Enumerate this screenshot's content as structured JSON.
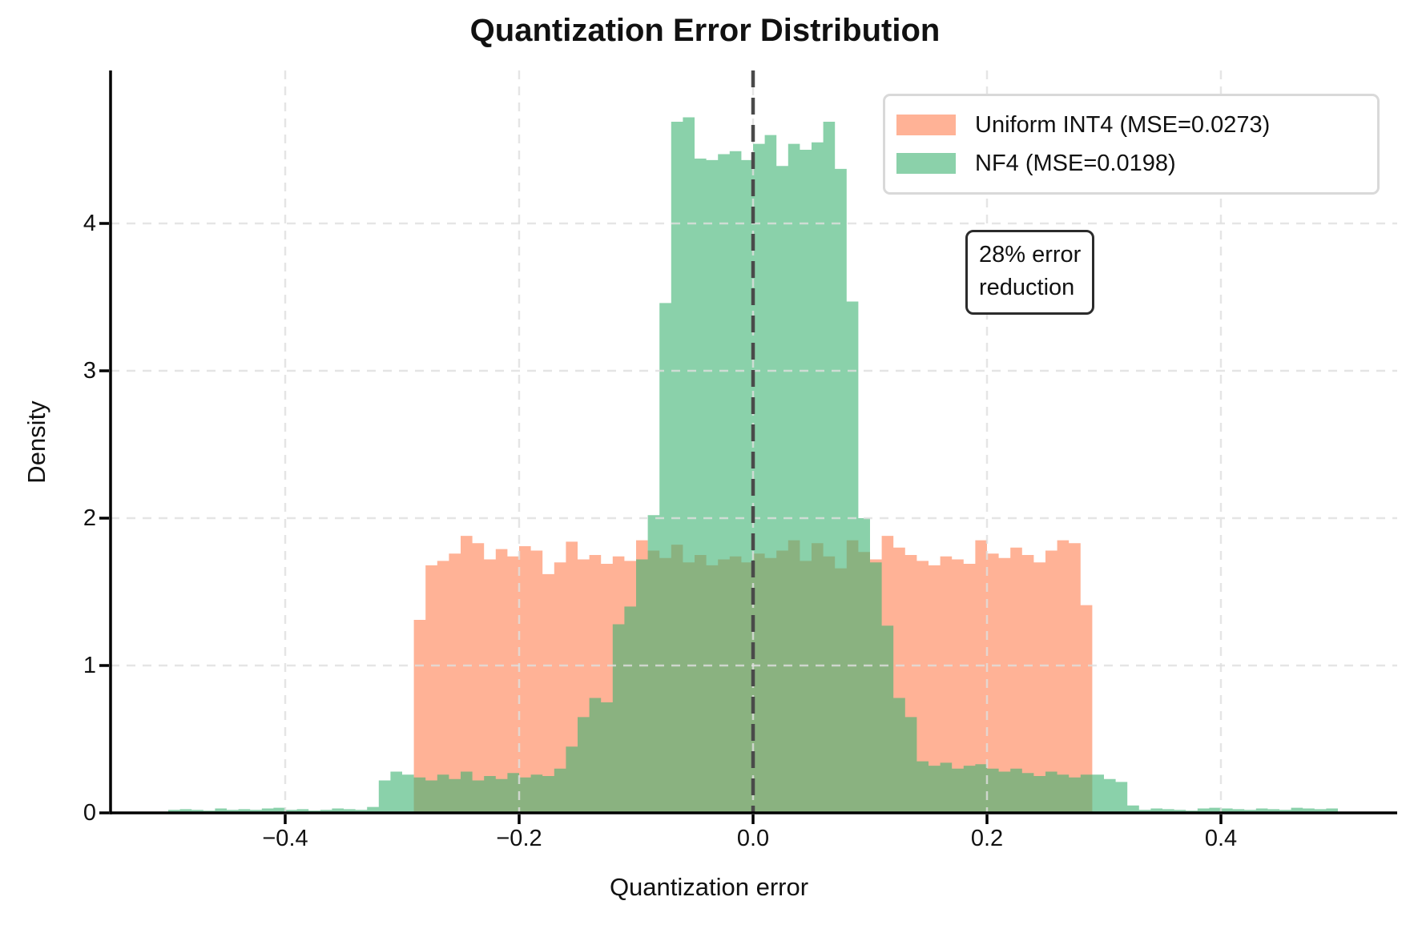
{
  "page": {
    "background": "#FFFFFF"
  },
  "chart_data": {
    "type": "histogram",
    "title": "Quantization Error Distribution",
    "xlabel": "Quantization error",
    "ylabel": "Density",
    "xlim": [
      -0.55,
      0.552
    ],
    "ylim": [
      0,
      5.04
    ],
    "grid": true,
    "legend_position": "upper right",
    "x_ticks": [
      -0.4,
      -0.2,
      0.0,
      0.2,
      0.4
    ],
    "x_tick_labels": [
      "−0.4",
      "−0.2",
      "0.0",
      "0.2",
      "0.4"
    ],
    "y_ticks": [
      0,
      1,
      2,
      3,
      4
    ],
    "y_tick_labels": [
      "0",
      "1",
      "2",
      "3",
      "4"
    ],
    "zero_line_x": 0.0,
    "colors": {
      "uniform_base": "#FF7F50",
      "nf4_base": "#3CB371",
      "alpha": 0.6,
      "zero_line": "#4A4A4A",
      "grid": "#DFDFDF",
      "legend_border": "#D9D9D9",
      "annotation_border": "#2B2B2B"
    },
    "series": [
      {
        "name": "Uniform INT4 (MSE=0.0273)",
        "mse": 0.0273,
        "bin_start": -0.29,
        "bin_width": 0.01,
        "fill": "#FFB296",
        "legend_fill": "#FFB296",
        "values": [
          1.31,
          1.68,
          1.71,
          1.76,
          1.88,
          1.83,
          1.72,
          1.79,
          1.74,
          1.81,
          1.78,
          1.62,
          1.7,
          1.84,
          1.72,
          1.75,
          1.69,
          1.74,
          1.71,
          1.85,
          1.78,
          1.73,
          1.82,
          1.7,
          1.75,
          1.68,
          1.72,
          1.74,
          1.7,
          1.76,
          1.73,
          1.78,
          1.85,
          1.71,
          1.83,
          1.74,
          1.66,
          1.85,
          1.77,
          1.72,
          1.88,
          1.8,
          1.75,
          1.71,
          1.68,
          1.74,
          1.72,
          1.69,
          1.85,
          1.76,
          1.73,
          1.8,
          1.75,
          1.7,
          1.78,
          1.85,
          1.83,
          1.41
        ]
      },
      {
        "name": "NF4 (MSE=0.0198)",
        "mse": 0.0198,
        "bin_start": -0.52,
        "bin_width": 0.01,
        "fill": "rgba(60,179,113,0.6)",
        "legend_fill": "#8BD1AA",
        "values": [
          0,
          0,
          0.02,
          0.025,
          0.02,
          0.015,
          0.03,
          0.02,
          0.025,
          0.02,
          0.03,
          0.035,
          0.02,
          0.025,
          0.015,
          0.02,
          0.03,
          0.025,
          0.02,
          0.04,
          0.22,
          0.28,
          0.26,
          0.24,
          0.22,
          0.26,
          0.23,
          0.28,
          0.22,
          0.25,
          0.23,
          0.27,
          0.24,
          0.26,
          0.25,
          0.3,
          0.45,
          0.65,
          0.78,
          0.75,
          1.28,
          1.4,
          1.72,
          2.02,
          3.46,
          4.69,
          4.72,
          4.44,
          4.43,
          4.47,
          4.49,
          4.43,
          4.54,
          4.6,
          4.39,
          4.54,
          4.5,
          4.55,
          4.69,
          4.37,
          3.47,
          2.0,
          1.7,
          1.27,
          0.78,
          0.65,
          0.35,
          0.32,
          0.34,
          0.3,
          0.32,
          0.33,
          0.3,
          0.28,
          0.3,
          0.27,
          0.25,
          0.28,
          0.26,
          0.24,
          0.26,
          0.26,
          0.23,
          0.21,
          0.05,
          0.02,
          0.03,
          0.025,
          0.02,
          0.015,
          0.03,
          0.035,
          0.03,
          0.025,
          0.02,
          0.03,
          0.025,
          0.02,
          0.035,
          0.03,
          0.025,
          0.03,
          0,
          0
        ]
      }
    ],
    "annotation": {
      "line1": "28% error",
      "line2": "reduction"
    }
  }
}
